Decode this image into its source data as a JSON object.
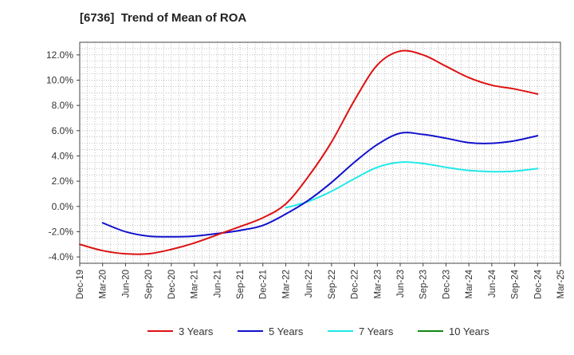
{
  "chart_data": {
    "type": "line",
    "title": "[6736]  Trend of Mean of ROA",
    "xlabel": "",
    "ylabel": "",
    "x": [
      "Dec-19",
      "Mar-20",
      "Jun-20",
      "Sep-20",
      "Dec-20",
      "Mar-21",
      "Jun-21",
      "Sep-21",
      "Dec-21",
      "Mar-22",
      "Jun-22",
      "Sep-22",
      "Dec-22",
      "Mar-23",
      "Jun-23",
      "Sep-23",
      "Dec-23",
      "Mar-24",
      "Jun-24",
      "Sep-24",
      "Dec-24",
      "Mar-25"
    ],
    "ylim": [
      -4.5,
      13.0
    ],
    "yticks": [
      -4.0,
      -2.0,
      0.0,
      2.0,
      4.0,
      6.0,
      8.0,
      10.0,
      12.0
    ],
    "ytick_labels": [
      "-4.0%",
      "-2.0%",
      "0.0%",
      "2.0%",
      "4.0%",
      "6.0%",
      "8.0%",
      "10.0%",
      "12.0%"
    ],
    "grid": true,
    "legend_position": "bottom",
    "series": [
      {
        "name": "3 Years",
        "color": "#dd1111",
        "values": [
          -3.0,
          -3.5,
          -3.75,
          -3.75,
          -3.4,
          -2.9,
          -2.25,
          -1.6,
          -0.9,
          0.2,
          2.4,
          5.1,
          8.4,
          11.2,
          12.3,
          12.0,
          11.1,
          10.2,
          9.6,
          9.3,
          8.9,
          null
        ]
      },
      {
        "name": "5 Years",
        "color": "#1111cc",
        "values": [
          null,
          -1.3,
          -2.0,
          -2.35,
          -2.4,
          -2.35,
          -2.15,
          -1.9,
          -1.5,
          -0.6,
          0.5,
          1.9,
          3.5,
          4.9,
          5.8,
          5.7,
          5.4,
          5.05,
          5.0,
          5.2,
          5.6,
          null
        ]
      },
      {
        "name": "7 Years",
        "color": "#22e8e8",
        "values": [
          null,
          null,
          null,
          null,
          null,
          null,
          null,
          null,
          null,
          -0.1,
          0.4,
          1.2,
          2.2,
          3.1,
          3.5,
          3.4,
          3.1,
          2.85,
          2.75,
          2.8,
          3.0,
          null
        ]
      },
      {
        "name": "10 Years",
        "color": "#118811",
        "values": [
          null,
          null,
          null,
          null,
          null,
          null,
          null,
          null,
          null,
          null,
          null,
          null,
          null,
          null,
          null,
          null,
          null,
          null,
          null,
          null,
          null,
          null
        ]
      }
    ]
  }
}
